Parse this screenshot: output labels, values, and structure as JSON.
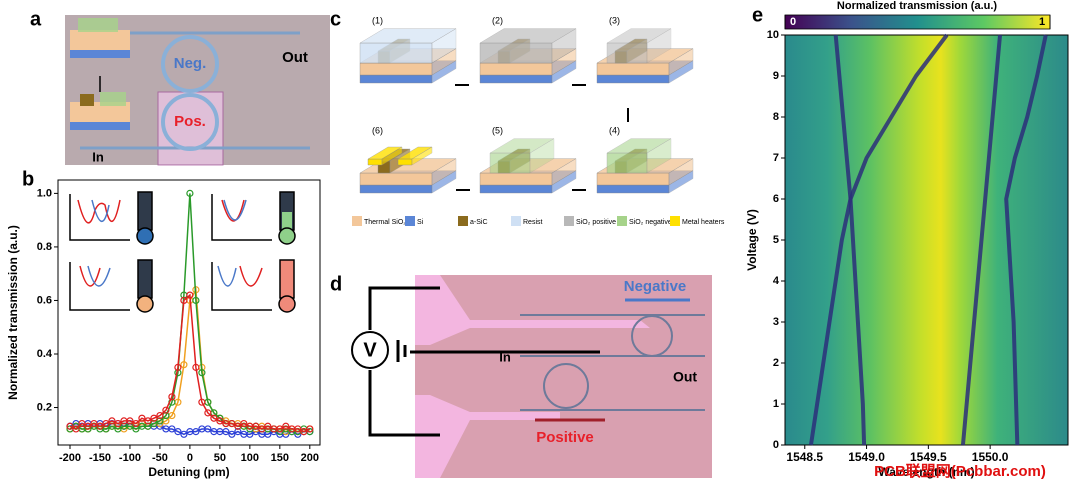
{
  "panel_labels": [
    "a",
    "b",
    "c",
    "d",
    "e"
  ],
  "panel_a": {
    "ring_negative": "Neg.",
    "ring_positive": "Pos.",
    "port_out": "Out",
    "port_in": "In"
  },
  "panel_c": {
    "steps": [
      "(1)",
      "(2)",
      "(3)",
      "(4)",
      "(5)",
      "(6)"
    ],
    "legend": [
      "Thermal SiO₂",
      "Si",
      "a-SiC",
      "Resist",
      "SiO₂ positive",
      "SiO₂ negative",
      "Metal heaters"
    ]
  },
  "panel_d": {
    "source": "V",
    "port_in": "In",
    "port_out": "Out",
    "negative": "Negative",
    "positive": "Positive"
  },
  "watermark": "PCB联盟网(Pcbbar.com)",
  "chart_data": [
    {
      "type": "line",
      "xlabel": "Detuning (pm)",
      "ylabel": "Normalized transmission (a.u.)",
      "xlim": [
        -220,
        217
      ],
      "ylim": [
        0.06,
        1.05
      ],
      "xticks": [
        -200,
        -150,
        -100,
        -50,
        0,
        50,
        100,
        150,
        200
      ],
      "yticks": [
        0.2,
        0.4,
        0.6,
        0.8,
        {
          "value": 1,
          "label": "1.0"
        }
      ],
      "x": [
        -200,
        -190,
        -180,
        -170,
        -160,
        -150,
        -140,
        -130,
        -120,
        -110,
        -100,
        -90,
        -80,
        -70,
        -60,
        -50,
        -40,
        -30,
        -20,
        -10,
        0,
        10,
        20,
        30,
        40,
        50,
        60,
        70,
        80,
        90,
        100,
        110,
        120,
        130,
        140,
        150,
        160,
        170,
        180,
        190,
        200
      ],
      "series": [
        {
          "color": "#2b3fd6",
          "values": [
            0.13,
            0.14,
            0.13,
            0.14,
            0.13,
            0.14,
            0.13,
            0.14,
            0.14,
            0.13,
            0.14,
            0.13,
            0.14,
            0.13,
            0.13,
            0.13,
            0.12,
            0.12,
            0.11,
            0.1,
            0.11,
            0.11,
            0.12,
            0.12,
            0.11,
            0.11,
            0.11,
            0.1,
            0.11,
            0.1,
            0.1,
            0.11,
            0.1,
            0.1,
            0.11,
            0.1,
            0.1,
            0.11,
            0.1,
            0.11,
            0.11
          ]
        },
        {
          "color": "#f0a020",
          "values": [
            0.12,
            0.13,
            0.12,
            0.12,
            0.13,
            0.13,
            0.12,
            0.13,
            0.13,
            0.12,
            0.13,
            0.13,
            0.14,
            0.13,
            0.14,
            0.14,
            0.15,
            0.17,
            0.22,
            0.36,
            0.6,
            0.64,
            0.35,
            0.22,
            0.18,
            0.16,
            0.15,
            0.14,
            0.14,
            0.13,
            0.13,
            0.12,
            0.13,
            0.12,
            0.12,
            0.12,
            0.11,
            0.12,
            0.11,
            0.11,
            0.12
          ]
        },
        {
          "color": "#2a9a2a",
          "values": [
            0.12,
            0.13,
            0.12,
            0.12,
            0.13,
            0.12,
            0.12,
            0.13,
            0.12,
            0.13,
            0.13,
            0.12,
            0.13,
            0.13,
            0.14,
            0.15,
            0.17,
            0.22,
            0.33,
            0.62,
            1.0,
            0.6,
            0.33,
            0.22,
            0.18,
            0.16,
            0.14,
            0.14,
            0.13,
            0.13,
            0.12,
            0.13,
            0.12,
            0.12,
            0.12,
            0.11,
            0.12,
            0.11,
            0.11,
            0.12,
            0.11
          ]
        },
        {
          "color": "#e02020",
          "values": [
            0.13,
            0.12,
            0.14,
            0.13,
            0.14,
            0.13,
            0.14,
            0.15,
            0.14,
            0.15,
            0.15,
            0.14,
            0.16,
            0.15,
            0.16,
            0.17,
            0.19,
            0.24,
            0.35,
            0.6,
            0.62,
            0.35,
            0.22,
            0.18,
            0.16,
            0.15,
            0.14,
            0.14,
            0.13,
            0.14,
            0.13,
            0.13,
            0.12,
            0.13,
            0.12,
            0.12,
            0.13,
            0.12,
            0.12,
            0.11,
            0.12
          ]
        }
      ]
    },
    {
      "type": "dips",
      "xlabel": "Wavelength (nm)",
      "ylabel": "Voltage (V)",
      "colorbar": {
        "title": "Normalized transmission (a.u.)",
        "ticks": [
          0,
          1
        ]
      },
      "xlim": [
        1548.34,
        1550.63
      ],
      "ylim": [
        0,
        10
      ],
      "xticks": [
        1548.5,
        {
          "value": 1549,
          "label": "1549.0"
        },
        1549.5,
        {
          "value": 1550,
          "label": "1550.0"
        }
      ],
      "yticks": [
        0,
        1,
        2,
        3,
        4,
        5,
        6,
        7,
        8,
        9,
        10
      ],
      "y": [
        0,
        1,
        2,
        3,
        4,
        5,
        6,
        7,
        8,
        9,
        10
      ],
      "series": [
        {
          "color": "#2c2f7a",
          "values": [
            1548.55,
            1548.6,
            1548.65,
            1548.7,
            1548.75,
            1548.8,
            1548.87,
            1549.0,
            1549.2,
            1549.4,
            1549.65
          ]
        },
        {
          "color": "#2c2f7a",
          "values": [
            1548.98,
            1548.97,
            1548.95,
            1548.93,
            1548.91,
            1548.89,
            1548.87,
            1548.84,
            1548.81,
            1548.78,
            1548.75
          ]
        },
        {
          "color": "#2c2f7a",
          "values": [
            1549.78,
            1549.81,
            1549.84,
            1549.87,
            1549.9,
            1549.93,
            1549.96,
            1549.99,
            1550.02,
            1550.05,
            1550.08
          ]
        },
        {
          "color": "#2c2f7a",
          "values": [
            1550.22,
            1550.21,
            1550.2,
            1550.19,
            1550.17,
            1550.15,
            1550.13,
            1550.2,
            1550.3,
            1550.38,
            1550.45
          ]
        }
      ]
    }
  ]
}
